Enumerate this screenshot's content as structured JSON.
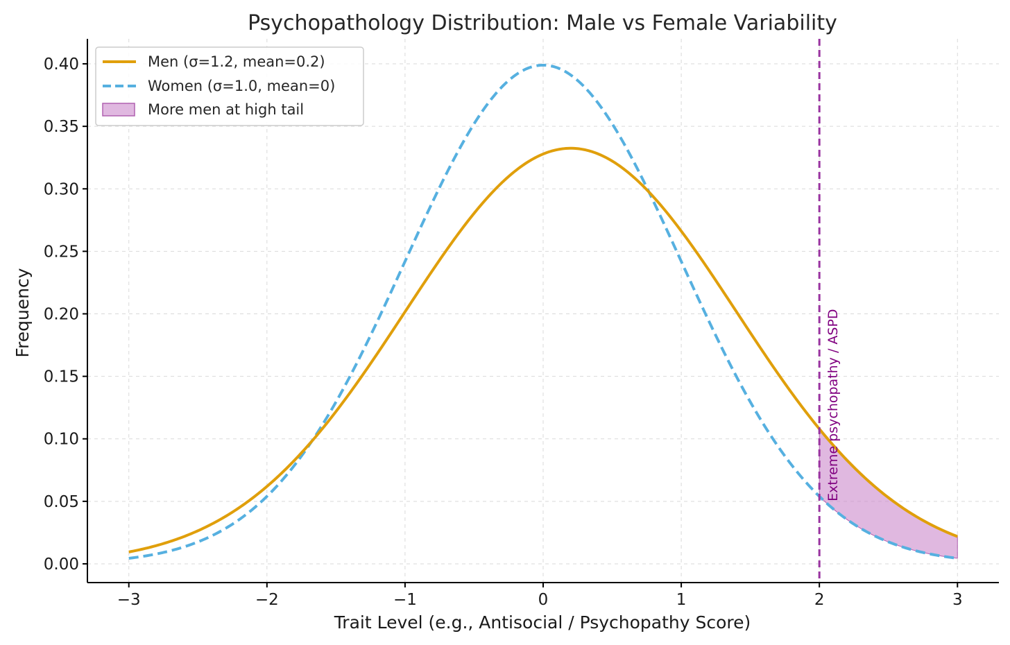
{
  "chart_data": {
    "type": "line",
    "title": "Psychopathology Distribution: Male vs Female Variability",
    "xlabel": "Trait Level (e.g., Antisocial / Psychopathy Score)",
    "ylabel": "Frequency",
    "xlim": [
      -3.3,
      3.3
    ],
    "ylim": [
      -0.015,
      0.42
    ],
    "x_range": [
      -3,
      3
    ],
    "xticks": [
      -3,
      -2,
      -1,
      0,
      1,
      2,
      3
    ],
    "xtick_labels": [
      "−3",
      "−2",
      "−1",
      "0",
      "1",
      "2",
      "3"
    ],
    "yticks": [
      0.0,
      0.05,
      0.1,
      0.15,
      0.2,
      0.25,
      0.3,
      0.35,
      0.4
    ],
    "ytick_labels": [
      "0.00",
      "0.05",
      "0.10",
      "0.15",
      "0.20",
      "0.25",
      "0.30",
      "0.35",
      "0.40"
    ],
    "grid": true,
    "legend_position": "top-left",
    "series": [
      {
        "name": "Men (σ=1.2, mean=0.2)",
        "distribution": "normal",
        "mean": 0.2,
        "sigma": 1.2,
        "color": "#e09f0b",
        "style": "solid"
      },
      {
        "name": "Women (σ=1.0, mean=0)",
        "distribution": "normal",
        "mean": 0.0,
        "sigma": 1.0,
        "color": "#56b0e0",
        "style": "dashed"
      }
    ],
    "fill": {
      "name": "More men at high tail",
      "x_from": 2,
      "x_to": 3,
      "color": "#cc88cc",
      "opacity": 0.6
    },
    "threshold": {
      "x": 2,
      "label": "Extreme psychopathy / ASPD",
      "color": "#9933a0"
    }
  }
}
